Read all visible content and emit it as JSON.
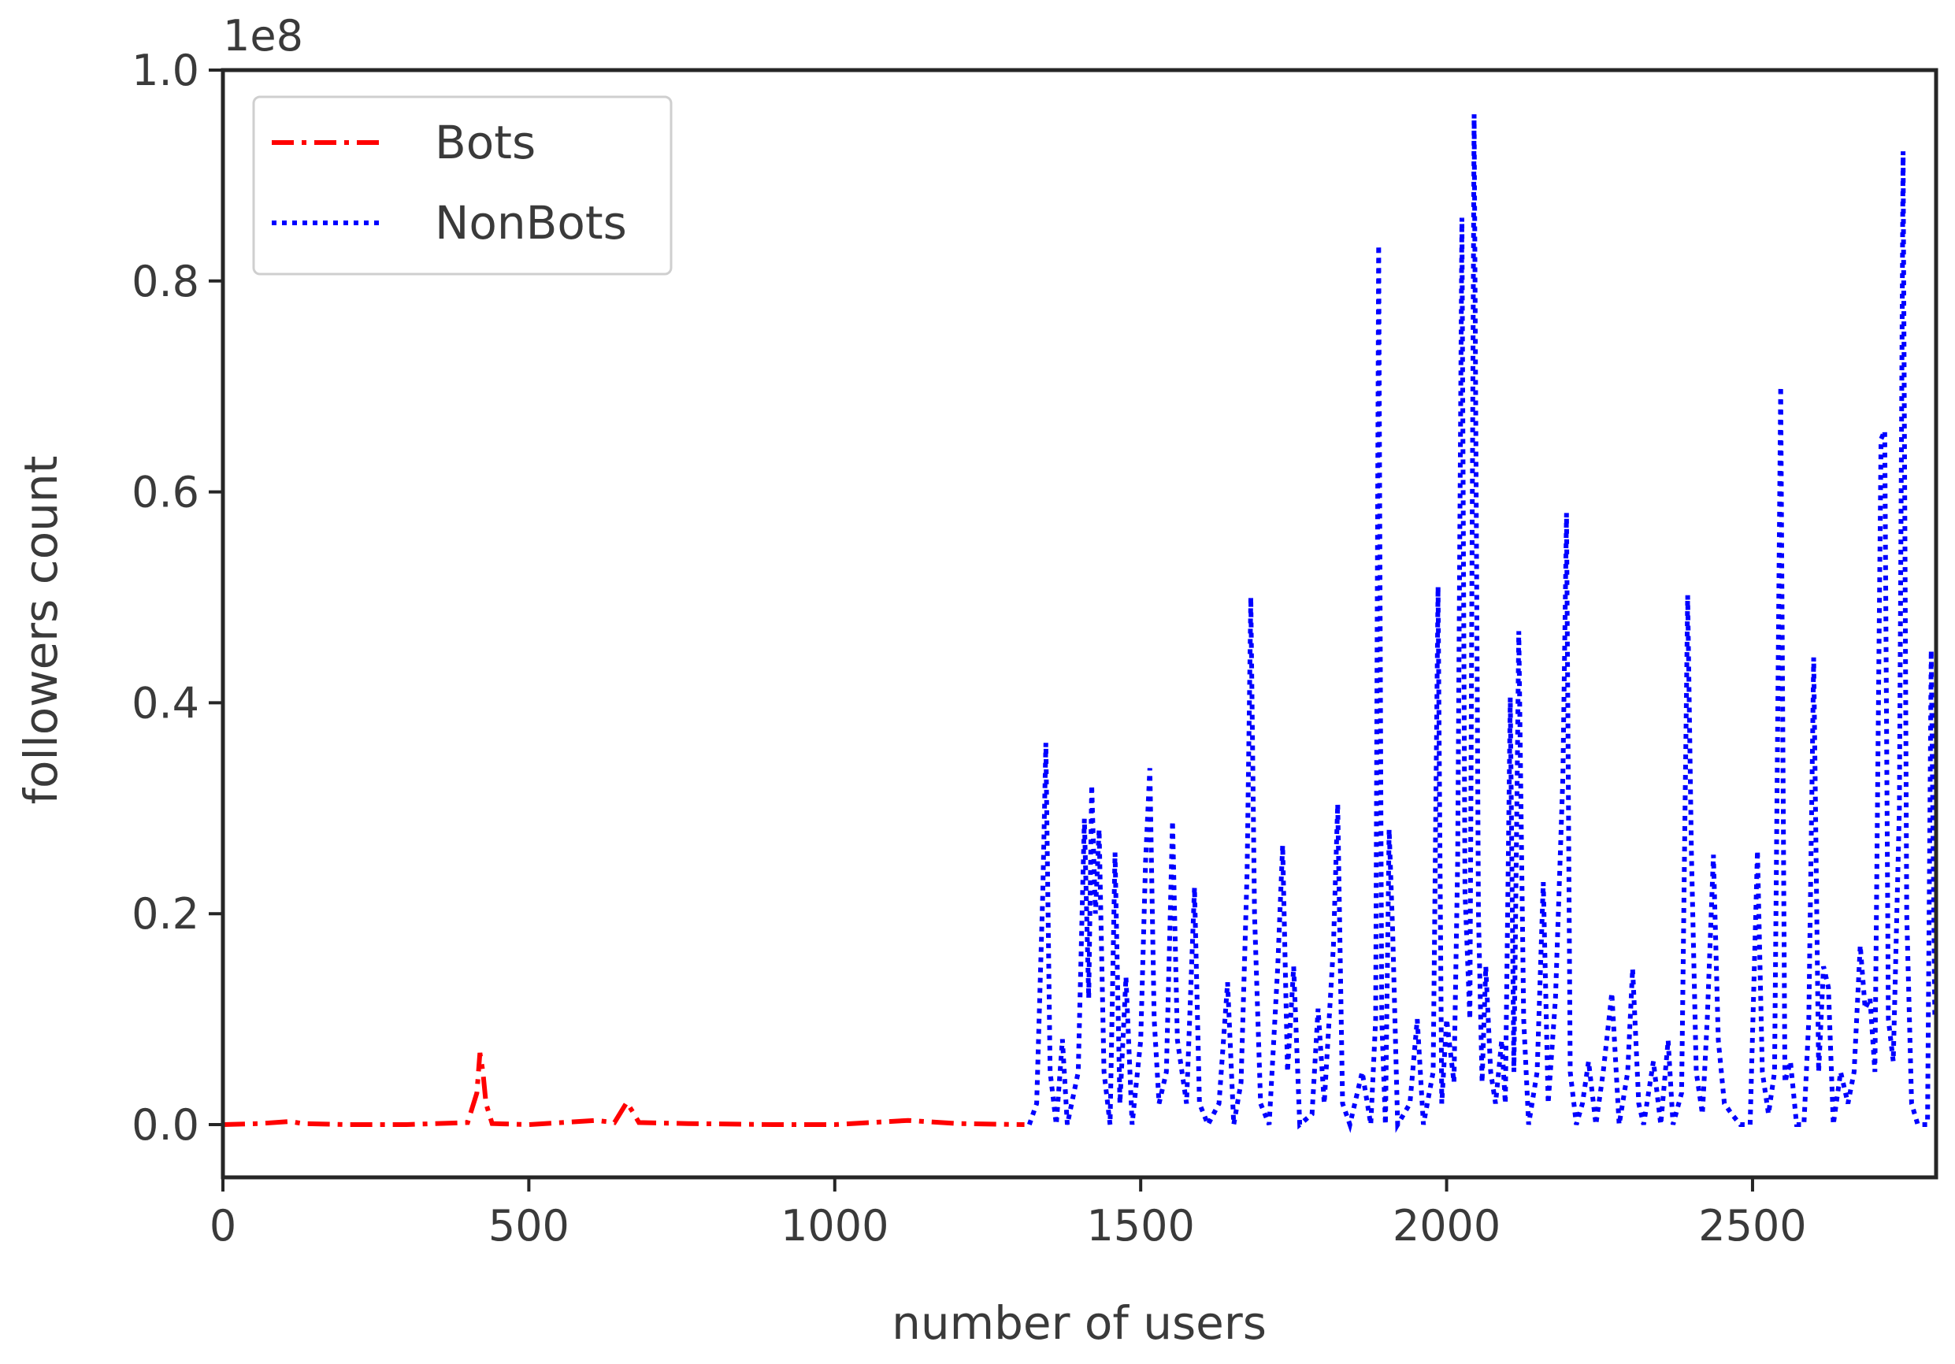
{
  "chart_data": {
    "type": "line",
    "title": "",
    "xlabel": "number of users",
    "ylabel": "followers count",
    "y_offset_label": "1e8",
    "xlim": [
      0,
      2800
    ],
    "ylim": [
      -0.05,
      1.0
    ],
    "y_unit_multiplier": 100000000,
    "x_ticks": [
      0,
      500,
      1000,
      1500,
      2000,
      2500
    ],
    "x_tick_labels": [
      "0",
      "500",
      "1000",
      "1500",
      "2000",
      "2500"
    ],
    "y_ticks": [
      0.0,
      0.2,
      0.4,
      0.6,
      0.8,
      1.0
    ],
    "y_tick_labels": [
      "0.0",
      "0.2",
      "0.4",
      "0.6",
      "0.8",
      "1.0"
    ],
    "grid": false,
    "legend_position": "top-left",
    "series": [
      {
        "name": "Bots",
        "color": "#ff0000",
        "linestyle": "dashdot",
        "points": [
          [
            0,
            0.0
          ],
          [
            60,
            0.001
          ],
          [
            110,
            0.003
          ],
          [
            130,
            0.001
          ],
          [
            200,
            0.0
          ],
          [
            300,
            0.0
          ],
          [
            400,
            0.002
          ],
          [
            415,
            0.03
          ],
          [
            420,
            0.068
          ],
          [
            425,
            0.05
          ],
          [
            430,
            0.02
          ],
          [
            440,
            0.001
          ],
          [
            500,
            0.0
          ],
          [
            610,
            0.004
          ],
          [
            640,
            0.002
          ],
          [
            660,
            0.021
          ],
          [
            670,
            0.012
          ],
          [
            680,
            0.002
          ],
          [
            760,
            0.001
          ],
          [
            900,
            0.0
          ],
          [
            1000,
            0.0
          ],
          [
            1120,
            0.004
          ],
          [
            1200,
            0.001
          ],
          [
            1310,
            0.0
          ]
        ]
      },
      {
        "name": "NonBots",
        "color": "#0000ff",
        "linestyle": "dotted",
        "points": [
          [
            1318,
            0.0
          ],
          [
            1330,
            0.02
          ],
          [
            1340,
            0.22
          ],
          [
            1345,
            0.362
          ],
          [
            1352,
            0.05
          ],
          [
            1362,
            0.0
          ],
          [
            1372,
            0.081
          ],
          [
            1380,
            0.0
          ],
          [
            1398,
            0.05
          ],
          [
            1408,
            0.29
          ],
          [
            1415,
            0.12
          ],
          [
            1420,
            0.322
          ],
          [
            1426,
            0.2
          ],
          [
            1432,
            0.28
          ],
          [
            1440,
            0.05
          ],
          [
            1450,
            0.0
          ],
          [
            1458,
            0.258
          ],
          [
            1466,
            0.02
          ],
          [
            1476,
            0.14
          ],
          [
            1486,
            0.0
          ],
          [
            1500,
            0.08
          ],
          [
            1508,
            0.25
          ],
          [
            1515,
            0.338
          ],
          [
            1522,
            0.1
          ],
          [
            1530,
            0.02
          ],
          [
            1542,
            0.05
          ],
          [
            1552,
            0.288
          ],
          [
            1560,
            0.08
          ],
          [
            1575,
            0.02
          ],
          [
            1588,
            0.225
          ],
          [
            1596,
            0.02
          ],
          [
            1610,
            0.0
          ],
          [
            1628,
            0.02
          ],
          [
            1642,
            0.135
          ],
          [
            1652,
            0.0
          ],
          [
            1664,
            0.04
          ],
          [
            1674,
            0.24
          ],
          [
            1680,
            0.5
          ],
          [
            1686,
            0.2
          ],
          [
            1696,
            0.02
          ],
          [
            1710,
            0.0
          ],
          [
            1724,
            0.15
          ],
          [
            1732,
            0.265
          ],
          [
            1740,
            0.05
          ],
          [
            1750,
            0.15
          ],
          [
            1760,
            0.0
          ],
          [
            1780,
            0.01
          ],
          [
            1790,
            0.11
          ],
          [
            1800,
            0.02
          ],
          [
            1815,
            0.17
          ],
          [
            1822,
            0.304
          ],
          [
            1830,
            0.02
          ],
          [
            1842,
            0.0
          ],
          [
            1862,
            0.05
          ],
          [
            1876,
            0.0
          ],
          [
            1884,
            0.1
          ],
          [
            1889,
            0.834
          ],
          [
            1894,
            0.1
          ],
          [
            1900,
            0.0
          ],
          [
            1906,
            0.28
          ],
          [
            1912,
            0.18
          ],
          [
            1920,
            0.0
          ],
          [
            1940,
            0.02
          ],
          [
            1952,
            0.1
          ],
          [
            1962,
            0.0
          ],
          [
            1978,
            0.05
          ],
          [
            1986,
            0.51
          ],
          [
            1992,
            0.02
          ],
          [
            2000,
            0.1
          ],
          [
            2012,
            0.04
          ],
          [
            2018,
            0.25
          ],
          [
            2025,
            0.86
          ],
          [
            2030,
            0.22
          ],
          [
            2038,
            0.1
          ],
          [
            2045,
            0.958
          ],
          [
            2052,
            0.2
          ],
          [
            2058,
            0.04
          ],
          [
            2064,
            0.15
          ],
          [
            2072,
            0.05
          ],
          [
            2080,
            0.02
          ],
          [
            2090,
            0.08
          ],
          [
            2096,
            0.02
          ],
          [
            2104,
            0.405
          ],
          [
            2110,
            0.05
          ],
          [
            2118,
            0.468
          ],
          [
            2126,
            0.1
          ],
          [
            2134,
            0.0
          ],
          [
            2148,
            0.05
          ],
          [
            2158,
            0.23
          ],
          [
            2166,
            0.02
          ],
          [
            2178,
            0.12
          ],
          [
            2190,
            0.33
          ],
          [
            2196,
            0.58
          ],
          [
            2202,
            0.05
          ],
          [
            2212,
            0.0
          ],
          [
            2222,
            0.02
          ],
          [
            2232,
            0.06
          ],
          [
            2244,
            0.0
          ],
          [
            2256,
            0.05
          ],
          [
            2270,
            0.125
          ],
          [
            2282,
            0.0
          ],
          [
            2296,
            0.05
          ],
          [
            2304,
            0.148
          ],
          [
            2314,
            0.02
          ],
          [
            2322,
            0.0
          ],
          [
            2338,
            0.06
          ],
          [
            2350,
            0.0
          ],
          [
            2362,
            0.08
          ],
          [
            2370,
            0.0
          ],
          [
            2384,
            0.03
          ],
          [
            2394,
            0.502
          ],
          [
            2400,
            0.26
          ],
          [
            2408,
            0.05
          ],
          [
            2418,
            0.01
          ],
          [
            2426,
            0.1
          ],
          [
            2436,
            0.256
          ],
          [
            2444,
            0.08
          ],
          [
            2454,
            0.02
          ],
          [
            2466,
            0.01
          ],
          [
            2480,
            0.0
          ],
          [
            2496,
            0.0
          ],
          [
            2508,
            0.26
          ],
          [
            2516,
            0.05
          ],
          [
            2526,
            0.01
          ],
          [
            2536,
            0.05
          ],
          [
            2546,
            0.7
          ],
          [
            2553,
            0.04
          ],
          [
            2562,
            0.06
          ],
          [
            2572,
            0.0
          ],
          [
            2584,
            0.0
          ],
          [
            2592,
            0.1
          ],
          [
            2600,
            0.443
          ],
          [
            2608,
            0.05
          ],
          [
            2616,
            0.15
          ],
          [
            2624,
            0.13
          ],
          [
            2632,
            0.0
          ],
          [
            2644,
            0.05
          ],
          [
            2656,
            0.02
          ],
          [
            2666,
            0.05
          ],
          [
            2676,
            0.17
          ],
          [
            2684,
            0.11
          ],
          [
            2692,
            0.12
          ],
          [
            2700,
            0.05
          ],
          [
            2710,
            0.65
          ],
          [
            2716,
            0.658
          ],
          [
            2722,
            0.1
          ],
          [
            2730,
            0.06
          ],
          [
            2740,
            0.3
          ],
          [
            2746,
            0.923
          ],
          [
            2752,
            0.2
          ],
          [
            2760,
            0.02
          ],
          [
            2770,
            0.0
          ],
          [
            2786,
            0.0
          ],
          [
            2792,
            0.45
          ],
          [
            2798,
            0.1
          ]
        ]
      }
    ]
  }
}
